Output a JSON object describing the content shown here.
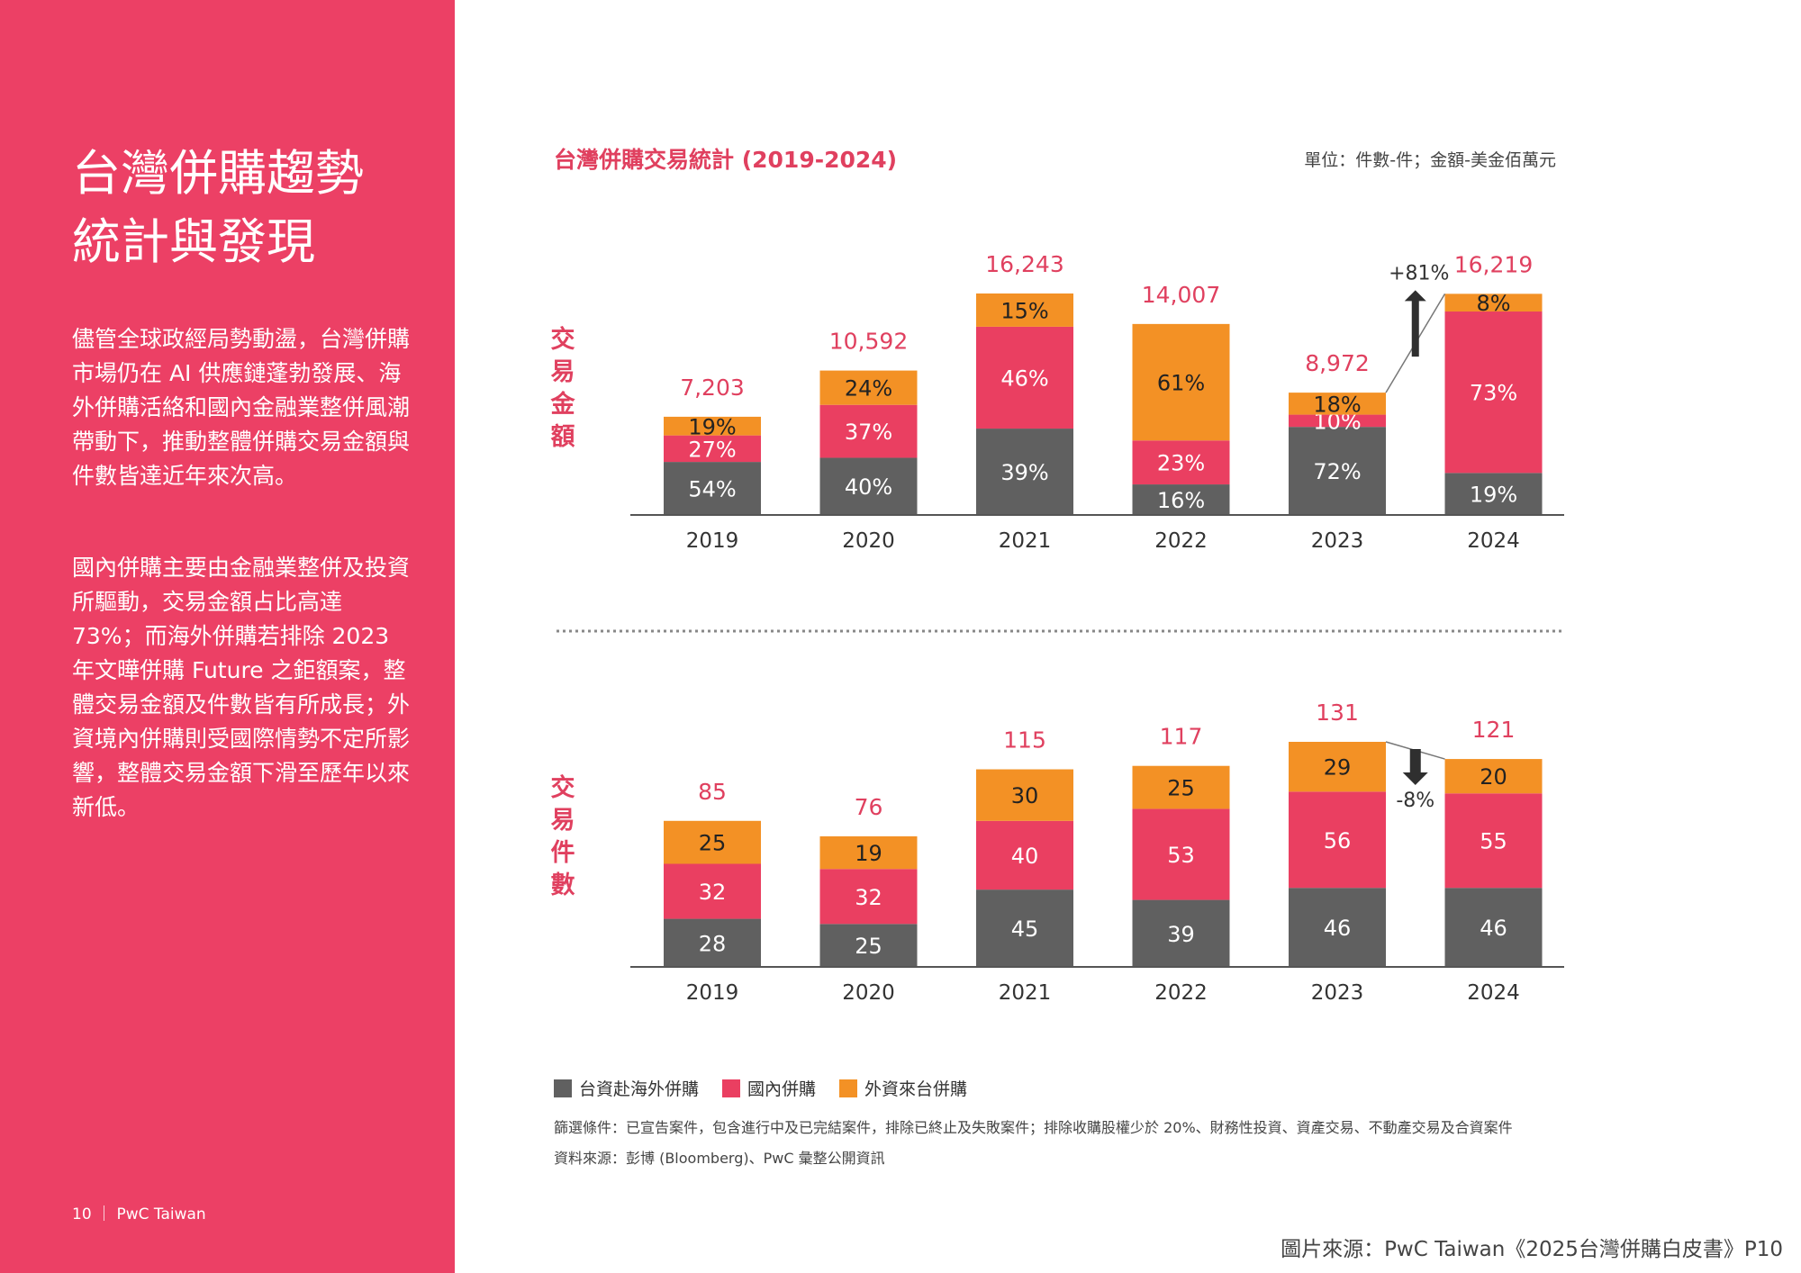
{
  "sidebar": {
    "title_line1": "台灣併購趨勢",
    "title_line2": "統計與發現",
    "para1": "儘管全球政經局勢動盪，台灣併購市場仍在 AI 供應鏈蓬勃發展、海外併購活絡和國內金融業整併風潮帶動下，推動整體併購交易金額與件數皆達近年來次高。",
    "para2": "國內併購主要由金融業整併及投資所驅動，交易金額占比高達 73%；而海外併購若排除 2023 年文曄併購 Future 之鉅額案，整體交易金額及件數皆有所成長；外資境內併購則受國際情勢不定所影響，整體交易金額下滑至歷年以來新低。",
    "footer": "10 ｜ PwC Taiwan"
  },
  "header": {
    "chart_title": "台灣併購交易統計 (2019-2024)",
    "unit": "單位：件數-件；金額-美金佰萬元"
  },
  "labels": {
    "amount_side": "交易金額",
    "count_side": "交易件數"
  },
  "legend": {
    "items": [
      {
        "label": "台資赴海外併購",
        "color": "#606060"
      },
      {
        "label": "國內併購",
        "color": "#ea3f61"
      },
      {
        "label": "外資來台併購",
        "color": "#f39125"
      }
    ]
  },
  "notes": {
    "filter": "篩選條件：已宣告案件，包含進行中及已完結案件，排除已終止及失敗案件；排除收購股權少於 20%、財務性投資、資產交易、不動產交易及合資案件",
    "source": "資料來源：彭博 (Bloomberg)、PwC 彙整公開資訊"
  },
  "image_source": "圖片來源：PwC Taiwan《2025台灣併購白皮書》P10",
  "chart_data": [
    {
      "type": "bar",
      "stacked": true,
      "name": "交易金額",
      "categories": [
        "2019",
        "2020",
        "2021",
        "2022",
        "2023",
        "2024"
      ],
      "totals": [
        7203,
        10592,
        16243,
        14007,
        8972,
        16219
      ],
      "total_labels": [
        "7,203",
        "10,592",
        "16,243",
        "14,007",
        "8,972",
        "16,219"
      ],
      "segments": [
        {
          "series": "台資赴海外併購",
          "color": "#606060",
          "values": [
            54,
            40,
            39,
            16,
            72,
            19
          ]
        },
        {
          "series": "國內併購",
          "color": "#ea3f61",
          "values": [
            27,
            37,
            46,
            23,
            10,
            73
          ]
        },
        {
          "series": "外資來台併購",
          "color": "#f39125",
          "values": [
            19,
            24,
            15,
            61,
            18,
            8
          ]
        }
      ],
      "segment_unit": "%",
      "annotation": {
        "text": "+81%",
        "direction": "up",
        "from": "2023",
        "to": "2024"
      }
    },
    {
      "type": "bar",
      "stacked": true,
      "name": "交易件數",
      "categories": [
        "2019",
        "2020",
        "2021",
        "2022",
        "2023",
        "2024"
      ],
      "totals": [
        85,
        76,
        115,
        117,
        131,
        121
      ],
      "total_labels": [
        "85",
        "76",
        "115",
        "117",
        "131",
        "121"
      ],
      "segments": [
        {
          "series": "台資赴海外併購",
          "color": "#606060",
          "values": [
            28,
            25,
            45,
            39,
            46,
            46
          ]
        },
        {
          "series": "國內併購",
          "color": "#ea3f61",
          "values": [
            32,
            32,
            40,
            53,
            56,
            55
          ]
        },
        {
          "series": "外資來台併購",
          "color": "#f39125",
          "values": [
            25,
            19,
            30,
            25,
            29,
            20
          ]
        }
      ],
      "segment_unit": "",
      "annotation": {
        "text": "-8%",
        "direction": "down",
        "from": "2023",
        "to": "2024"
      }
    }
  ]
}
